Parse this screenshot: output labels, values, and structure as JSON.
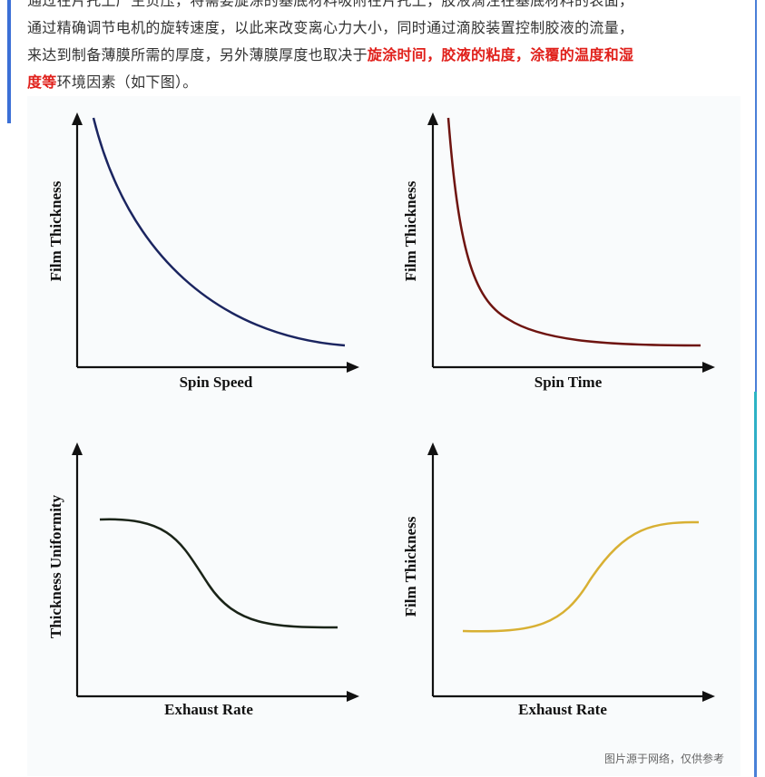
{
  "paragraph": {
    "lines": [
      {
        "segments": [
          {
            "text": "通过在片托上产生负压，将需要旋涂的基底材料吸附在片托上，胶液滴注在基底材料的表面，",
            "highlight": false
          }
        ]
      },
      {
        "segments": [
          {
            "text": "通过精确调节电机的旋转速度，以此来改变离心力大小，同时通过滴胶装置控制胶液的流量，",
            "highlight": false
          }
        ]
      },
      {
        "segments": [
          {
            "text": "来达到制备薄膜所需的厚度，另外薄膜厚度也取决于",
            "highlight": false
          },
          {
            "text": "旋涂时间，胶液的粘度，涂覆的温度和湿",
            "highlight": true
          }
        ]
      },
      {
        "segments": [
          {
            "text": "度等",
            "highlight": true
          },
          {
            "text": "环境因素（如下图）。",
            "highlight": false
          }
        ]
      }
    ]
  },
  "figure": {
    "panels": [
      {
        "y_label": "Film Thickness",
        "x_label": "Spin Speed"
      },
      {
        "y_label": "Film Thickness",
        "x_label": "Spin Time"
      },
      {
        "y_label": "Thickness Uniformity",
        "x_label": "Exhaust Rate"
      },
      {
        "y_label": "Film Thickness",
        "x_label": "Exhaust Rate"
      }
    ],
    "caption": "图片源于网络，仅供参考"
  }
}
